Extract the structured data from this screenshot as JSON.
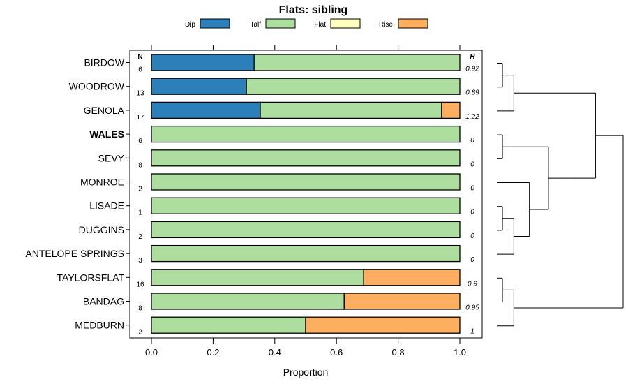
{
  "chart_data": {
    "type": "bar",
    "orientation": "horizontal",
    "stacked": true,
    "title": "Flats: sibling",
    "xlabel": "Proportion",
    "xlim": [
      0,
      1
    ],
    "xticks": [
      "0.0",
      "0.2",
      "0.4",
      "0.6",
      "0.8",
      "1.0"
    ],
    "n_header": "N",
    "h_header": "H",
    "legend": [
      {
        "name": "Dip",
        "color": "#2c7fb8"
      },
      {
        "name": "Talf",
        "color": "#addd9f"
      },
      {
        "name": "Flat",
        "color": "#ffffbf"
      },
      {
        "name": "Rise",
        "color": "#fdae61"
      }
    ],
    "categories": [
      "BIRDOW",
      "WOODROW",
      "GENOLA",
      "WALES",
      "SEVY",
      "MONROE",
      "LISADE",
      "DUGGINS",
      "ANTELOPE SPRINGS",
      "TAYLORSFLAT",
      "BANDAG",
      "MEDBURN"
    ],
    "bold_category": "WALES",
    "n": [
      "6",
      "13",
      "17",
      "6",
      "8",
      "2",
      "1",
      "2",
      "3",
      "16",
      "8",
      "2"
    ],
    "h": [
      "0.92",
      "0.89",
      "1.22",
      "0",
      "0",
      "0",
      "0",
      "0",
      "0",
      "0.9",
      "0.95",
      "1"
    ],
    "series": [
      {
        "name": "Dip",
        "values": [
          0.333,
          0.308,
          0.353,
          0,
          0,
          0,
          0,
          0,
          0,
          0,
          0,
          0
        ]
      },
      {
        "name": "Talf",
        "values": [
          0.667,
          0.692,
          0.588,
          1,
          1,
          1,
          1,
          1,
          1,
          0.688,
          0.625,
          0.5
        ]
      },
      {
        "name": "Flat",
        "values": [
          0,
          0,
          0,
          0,
          0,
          0,
          0,
          0,
          0,
          0,
          0,
          0
        ]
      },
      {
        "name": "Rise",
        "values": [
          0,
          0,
          0.059,
          0,
          0,
          0,
          0,
          0,
          0,
          0.312,
          0.375,
          0.5
        ]
      }
    ],
    "dendrogram": {
      "children": [
        {
          "children": [
            {
              "children": [
                {
                  "children": [
                    {
                      "leaf": 0
                    },
                    {
                      "leaf": 1
                    }
                  ]
                },
                {
                  "leaf": 2
                }
              ]
            },
            {
              "children": [
                {
                  "children": [
                    {
                      "children": [
                        {
                          "leaf": 3
                        },
                        {
                          "leaf": 4
                        }
                      ]
                    },
                    {
                      "children": [
                        {
                          "leaf": 5
                        },
                        {
                          "children": [
                            {
                              "children": [
                                {
                                  "leaf": 6
                                },
                                {
                                  "leaf": 7
                                }
                              ]
                            },
                            {
                              "leaf": 8
                            }
                          ]
                        }
                      ]
                    }
                  ]
                }
              ]
            }
          ]
        },
        {
          "children": [
            {
              "children": [
                {
                  "leaf": 9
                },
                {
                  "leaf": 10
                }
              ]
            },
            {
              "leaf": 11
            }
          ]
        }
      ]
    }
  }
}
